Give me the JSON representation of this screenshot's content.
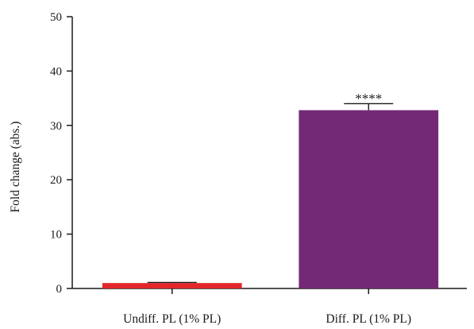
{
  "chart_data": {
    "type": "bar",
    "categories": [
      "Undiff. PL (1% PL)",
      "Diff. PL (1% PL)"
    ],
    "values": [
      1,
      32.8
    ],
    "errors": [
      0.1,
      1.2
    ],
    "colors": [
      "#e3262b",
      "#742977"
    ],
    "ylabel": "Fold change (abs.)",
    "xlabel": "",
    "ylim": [
      0,
      50
    ],
    "yticks": [
      0,
      10,
      20,
      30,
      40,
      50
    ],
    "yticks_labels": [
      "0",
      "10",
      "20",
      "30",
      "40",
      "50"
    ],
    "annotations": [
      {
        "text": "****",
        "category_index": 1
      }
    ],
    "grid": false,
    "legend": "none"
  }
}
